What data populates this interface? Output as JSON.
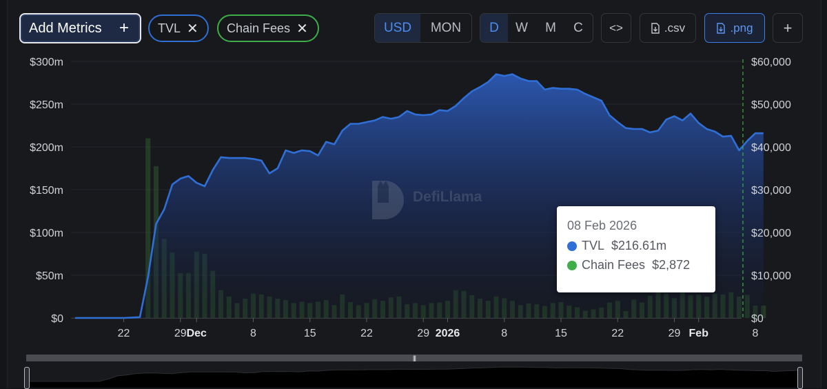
{
  "toolbar": {
    "add_metrics_label": "Add Metrics",
    "metric_pills": [
      "TVL",
      "Chain Fees"
    ],
    "currency_options": [
      "USD",
      "MON"
    ],
    "currency_selected": "USD",
    "period_options": [
      "D",
      "W",
      "M",
      "C"
    ],
    "period_selected": "D",
    "embed_label": "<>",
    "csv_label": ".csv",
    "png_label": ".png",
    "more_label": "+"
  },
  "colors": {
    "tvl": "#2f6fd6",
    "chain_fees": "#3fae4a",
    "accent": "#4d8cf0"
  },
  "watermark": "DefiLlama",
  "tooltip": {
    "date": "08 Feb 2026",
    "tvl_label": "TVL",
    "tvl_value": "$216.61m",
    "fees_label": "Chain Fees",
    "fees_value": "$2,872"
  },
  "chart_data": {
    "type": "area",
    "y_left_ticks": [
      "$0",
      "$50m",
      "$100m",
      "$150m",
      "$200m",
      "$250m",
      "$300m"
    ],
    "y_left_range": [
      0,
      300
    ],
    "y_right_ticks": [
      "$0",
      "$10,000",
      "$20,000",
      "$30,000",
      "$40,000",
      "$50,000",
      "$60,000"
    ],
    "y_right_range": [
      0,
      60000
    ],
    "x_ticks": [
      {
        "day": 6,
        "label": "22",
        "bold": false
      },
      {
        "day": 13,
        "label": "29",
        "bold": false
      },
      {
        "day": 15,
        "label": "Dec",
        "bold": true
      },
      {
        "day": 22,
        "label": "8",
        "bold": false
      },
      {
        "day": 29,
        "label": "15",
        "bold": false
      },
      {
        "day": 36,
        "label": "22",
        "bold": false
      },
      {
        "day": 43,
        "label": "29",
        "bold": false
      },
      {
        "day": 46,
        "label": "2026",
        "bold": true
      },
      {
        "day": 53,
        "label": "8",
        "bold": false
      },
      {
        "day": 60,
        "label": "15",
        "bold": false
      },
      {
        "day": 67,
        "label": "22",
        "bold": false
      },
      {
        "day": 74,
        "label": "29",
        "bold": false
      },
      {
        "day": 77,
        "label": "Feb",
        "bold": true
      },
      {
        "day": 84,
        "label": "8",
        "bold": false
      }
    ],
    "grid": true,
    "series": [
      {
        "name": "TVL",
        "axis": "left",
        "unit": "$m",
        "values": [
          0,
          0,
          0,
          0,
          0,
          0,
          0,
          0.5,
          1,
          48,
          110,
          127,
          156,
          163,
          166,
          158,
          154,
          173,
          188,
          187,
          187,
          187,
          186,
          184,
          169,
          175,
          196,
          193,
          196,
          195,
          190,
          206,
          203,
          219,
          227,
          227,
          229,
          231,
          235,
          233,
          235,
          242,
          238,
          237,
          238,
          243,
          242,
          248,
          257,
          265,
          270,
          276,
          285,
          283,
          285,
          280,
          277,
          277,
          267,
          269,
          268,
          268,
          267,
          262,
          258,
          254,
          237,
          229,
          222,
          221,
          221,
          217,
          219,
          232,
          236,
          231,
          239,
          228,
          221,
          218,
          212,
          213,
          196,
          207,
          216,
          216
        ]
      },
      {
        "name": "Chain Fees",
        "axis": "right",
        "unit": "$",
        "values": [
          0,
          0,
          0,
          0,
          0,
          0,
          0,
          0,
          0,
          42000,
          35500,
          18500,
          15300,
          10500,
          10500,
          15500,
          15000,
          11000,
          6500,
          5000,
          3500,
          4500,
          5700,
          5500,
          5000,
          4500,
          4200,
          3500,
          3800,
          3500,
          3800,
          4200,
          3000,
          5500,
          3700,
          3000,
          3500,
          4400,
          4000,
          4800,
          5000,
          3200,
          3500,
          3000,
          3500,
          3600,
          4000,
          6500,
          6300,
          5300,
          4500,
          4000,
          5000,
          4600,
          4000,
          3000,
          3400,
          3200,
          2800,
          3500,
          3700,
          2900,
          2500,
          1700,
          2000,
          2400,
          3600,
          4000,
          1600,
          4300,
          3600,
          5200,
          6100,
          5700,
          4600,
          5900,
          5300,
          5500,
          5000,
          5700,
          5500,
          6000,
          5000,
          5400,
          2900,
          2900
        ]
      }
    ]
  }
}
